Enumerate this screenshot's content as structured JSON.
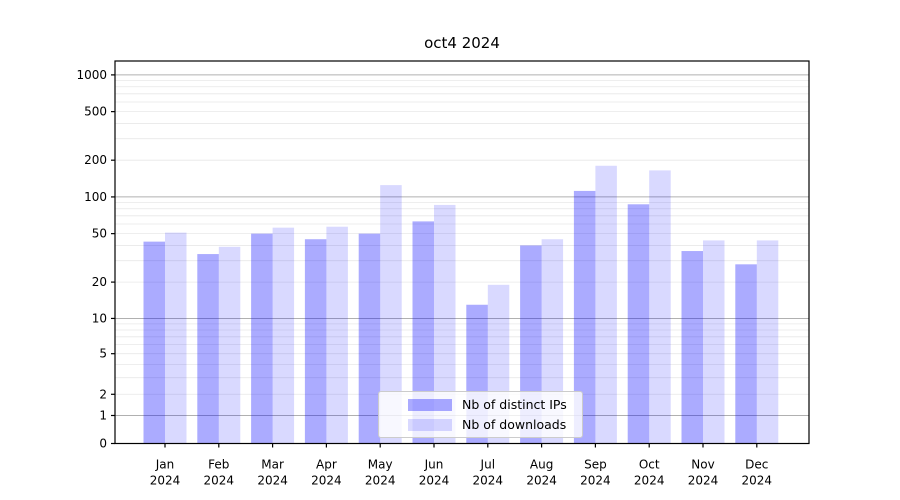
{
  "chart_data": {
    "type": "bar",
    "title": "oct4 2024",
    "categories": [
      "Jan",
      "Feb",
      "Mar",
      "Apr",
      "May",
      "Jun",
      "Jul",
      "Aug",
      "Sep",
      "Oct",
      "Nov",
      "Dec"
    ],
    "year_label": "2024",
    "series": [
      {
        "name": "Nb of distinct IPs",
        "color": "rgba(0,0,255,0.33)",
        "values": [
          43,
          34,
          50,
          45,
          50,
          63,
          13,
          40,
          112,
          87,
          36,
          28
        ]
      },
      {
        "name": "Nb of downloads",
        "color": "rgba(0,0,255,0.15)",
        "values": [
          51,
          39,
          56,
          57,
          125,
          86,
          19,
          45,
          180,
          165,
          44,
          44
        ]
      }
    ],
    "yticks": [
      1000,
      500,
      200,
      100,
      50,
      20,
      10,
      5,
      2,
      1,
      0
    ],
    "yscale": {
      "type": "asinh",
      "linear_width": 2
    },
    "ylim": [
      0,
      1300
    ],
    "grid": {
      "major_color": "#b0b0b0",
      "minor_color": "#e8e8e8"
    },
    "axis_color": "#000000",
    "legend_position": "lower-center"
  }
}
